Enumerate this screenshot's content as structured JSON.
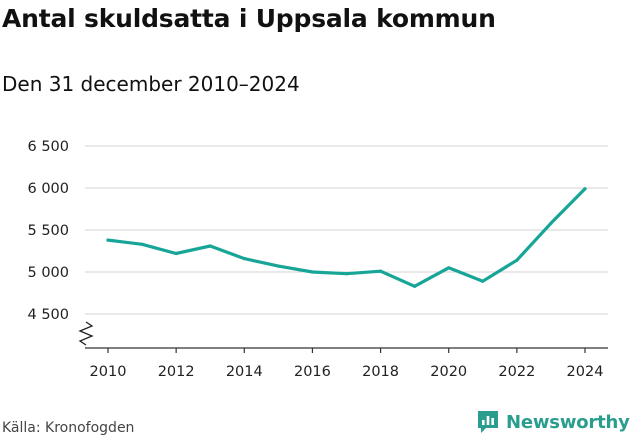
{
  "header": {
    "title": "Antal skuldsatta i Uppsala kommun",
    "subtitle": "Den 31 december 2010–2024"
  },
  "footer": {
    "source": "Källa: Kronofogden",
    "brand": "Newsworthy"
  },
  "colors": {
    "line": "#17a597",
    "grid": "#d3d3d3",
    "brand": "#2a9d8f"
  },
  "chart_data": {
    "type": "line",
    "title": "Antal skuldsatta i Uppsala kommun",
    "subtitle": "Den 31 december 2010–2024",
    "xlabel": "",
    "ylabel": "",
    "x": [
      2010,
      2011,
      2012,
      2013,
      2014,
      2015,
      2016,
      2017,
      2018,
      2019,
      2020,
      2021,
      2022,
      2023,
      2024
    ],
    "series": [
      {
        "name": "Antal skuldsatta",
        "values": [
          5380,
          5330,
          5220,
          5310,
          5160,
          5070,
          5000,
          4980,
          5010,
          4830,
          5050,
          4890,
          5140,
          5580,
          5990
        ]
      }
    ],
    "x_ticks": [
      2010,
      2012,
      2014,
      2016,
      2018,
      2020,
      2022,
      2024
    ],
    "x_tick_labels": [
      "2010",
      "2012",
      "2014",
      "2016",
      "2018",
      "2020",
      "2022",
      "2024"
    ],
    "y_ticks": [
      4500,
      5000,
      5500,
      6000,
      6500
    ],
    "y_tick_labels": [
      "4 500",
      "5 000",
      "5 500",
      "6 000",
      "6 500"
    ],
    "ylim": [
      4100,
      6500
    ],
    "xlim": [
      2010,
      2024
    ],
    "grid": true,
    "axis_break": true
  }
}
